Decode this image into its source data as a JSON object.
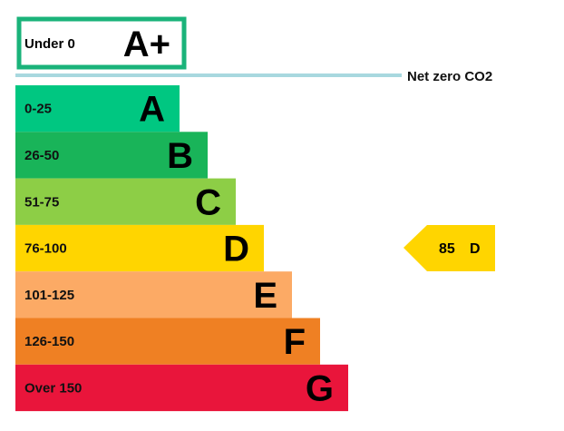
{
  "chart_data": {
    "type": "bar",
    "top_band": {
      "range": "Under 0",
      "rating": "A+",
      "border_color": "#1ab37a"
    },
    "net_zero_line": {
      "label": "Net zero CO2",
      "color": "#a8d8df"
    },
    "bands": [
      {
        "range": "0-25",
        "rating": "A",
        "color": "#00c781",
        "length": 1
      },
      {
        "range": "26-50",
        "rating": "B",
        "color": "#19b459",
        "length": 2
      },
      {
        "range": "51-75",
        "rating": "C",
        "color": "#8dce46",
        "length": 3
      },
      {
        "range": "76-100",
        "rating": "D",
        "color": "#ffd500",
        "length": 4
      },
      {
        "range": "101-125",
        "rating": "E",
        "color": "#fcaa65",
        "length": 5
      },
      {
        "range": "126-150",
        "rating": "F",
        "color": "#ef8023",
        "length": 6
      },
      {
        "range": "Over 150",
        "rating": "G",
        "color": "#e9153b",
        "length": 7
      }
    ],
    "current": {
      "score": "85",
      "rating": "D",
      "color": "#ffd500"
    }
  }
}
